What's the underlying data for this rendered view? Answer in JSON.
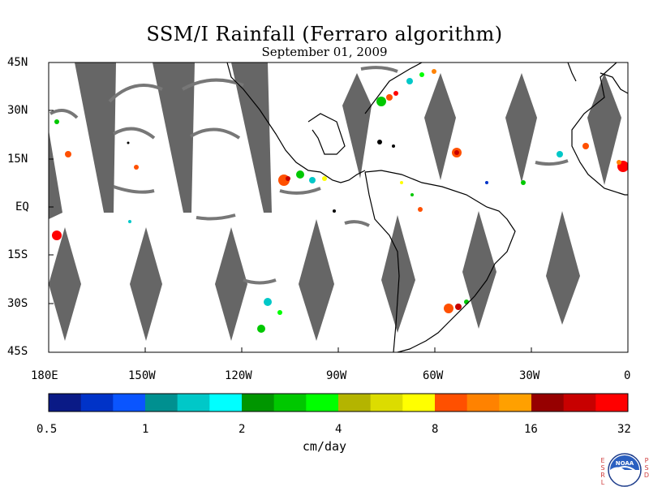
{
  "title": "SSM/I Rainfall (Ferraro algorithm)",
  "subtitle": "September 01, 2009",
  "map": {
    "lat_labels": [
      "45N",
      "30N",
      "15N",
      "EQ",
      "15S",
      "30S",
      "45S"
    ],
    "lon_labels": [
      "180E",
      "150W",
      "120W",
      "90W",
      "60W",
      "30W",
      "0"
    ],
    "colors": {
      "no_data_swath_gap": "#666666",
      "coastline": "#000000",
      "background": "#ffffff"
    }
  },
  "colorbar": {
    "unit_label": "cm/day",
    "tick_labels": [
      "0.5",
      "1",
      "2",
      "4",
      "8",
      "16",
      "32"
    ],
    "colors": [
      "#0a1a86",
      "#0033c8",
      "#0a55ff",
      "#009090",
      "#00c8c8",
      "#00ffff",
      "#009600",
      "#00c800",
      "#00ff00",
      "#b4b400",
      "#dcdc00",
      "#ffff00",
      "#ff5000",
      "#ff8200",
      "#ffa000",
      "#960000",
      "#c80000",
      "#ff0000"
    ]
  },
  "logo": {
    "text": "NOAA",
    "left_vertical": [
      "E",
      "S",
      "R",
      "L"
    ],
    "right_vertical": [
      "P",
      "S",
      "D"
    ]
  }
}
